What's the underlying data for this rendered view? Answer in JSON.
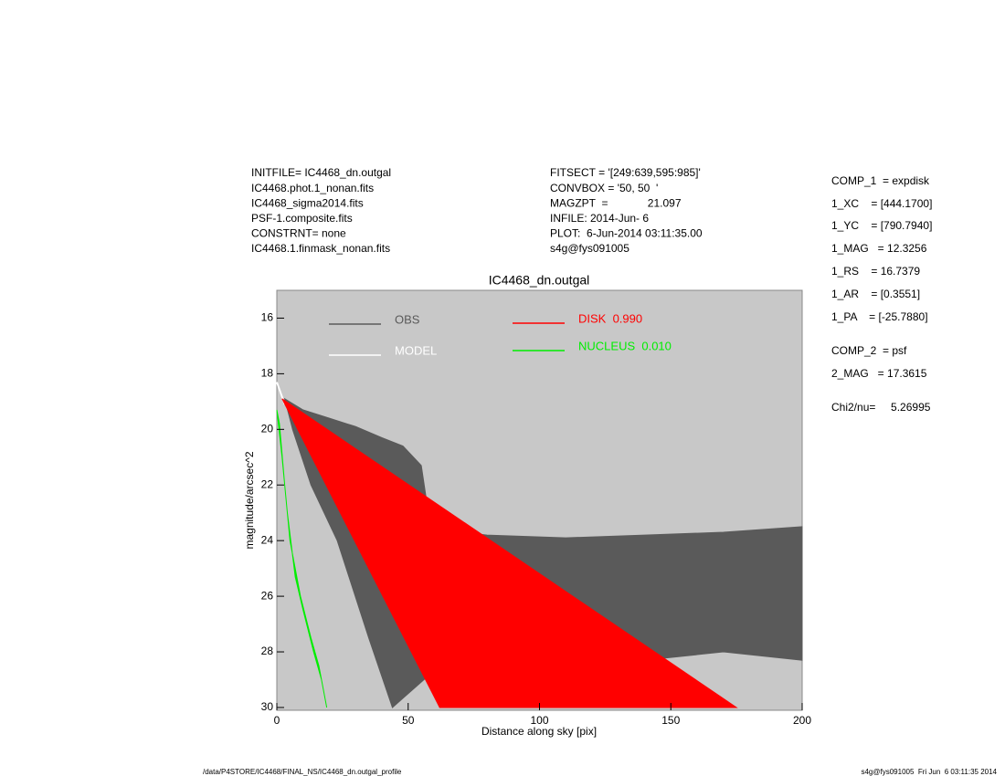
{
  "header": {
    "left": [
      "INITFILE= IC4468_dn.outgal",
      "IC4468.phot.1_nonan.fits",
      "IC4468_sigma2014.fits",
      "PSF-1.composite.fits",
      "CONSTRNT= none",
      "IC4468.1.finmask_nonan.fits"
    ],
    "middle": [
      "FITSECT = '[249:639,595:985]'",
      "CONVBOX = '50, 50  '",
      "MAGZPT  =             21.097",
      "INFILE: 2014-Jun- 6",
      "PLOT:  6-Jun-2014 03:11:35.00",
      "s4g@fys091005"
    ],
    "right": [
      "COMP_1  = expdisk",
      "1_XC    = [444.1700]",
      "1_YC    = [790.7940]",
      "1_MAG   = 12.3256",
      "1_RS    = 16.7379",
      "1_AR    = [0.3551]",
      "1_PA    = [-25.7880]",
      "COMP_2  = psf",
      "2_MAG   = 17.3615",
      "Chi2/nu=     5.26995"
    ]
  },
  "footer": {
    "left": "/data/P4STORE/IC4468/FINAL_NS/IC4468_dn.outgal_profile",
    "right": "s4g@fys091005  Fri Jun  6 03:11:35 2014"
  },
  "chart_data": {
    "type": "area",
    "title": "IC4468_dn.outgal",
    "x_label": "Distance along sky [pix]",
    "y_label": "magnitude/arcsec^2",
    "xlim": [
      0,
      200
    ],
    "xticks": [
      0,
      50,
      100,
      150,
      200
    ],
    "ylim": [
      15,
      30.1
    ],
    "y_inverted": true,
    "yticks": [
      16,
      18,
      20,
      22,
      24,
      26,
      28,
      30
    ],
    "series": [
      {
        "name": "OBS",
        "color": "#5a5a5a",
        "mark": "area",
        "x": [
          3,
          10,
          20,
          30,
          40,
          48,
          55,
          58,
          62,
          80,
          110,
          140,
          170,
          200,
          200,
          170,
          140,
          110,
          90,
          75,
          62,
          50,
          44,
          35,
          23,
          13,
          6
        ],
        "values": [
          18.9,
          19.3,
          19.6,
          19.9,
          20.3,
          20.6,
          21.3,
          23.2,
          23.6,
          23.8,
          23.9,
          23.8,
          23.7,
          23.5,
          28.3,
          28.0,
          28.3,
          27.9,
          27.6,
          27.5,
          28.5,
          29.5,
          30.0,
          27.5,
          24.0,
          22.0,
          20.0
        ]
      },
      {
        "name": "MODEL",
        "color": "#ffffff",
        "mark": "line",
        "x": [
          0,
          3
        ],
        "values": [
          18.3,
          19.1
        ]
      },
      {
        "name": "DISK  0.990",
        "color": "#ff0000",
        "mark": "area",
        "x": [
          2,
          62,
          175
        ],
        "values": [
          18.9,
          30,
          30
        ]
      },
      {
        "name": "NUCLEUS  0.010",
        "color": "#00ee00",
        "mark": "area",
        "x": [
          0,
          2,
          4,
          7,
          10,
          14,
          17,
          19,
          19,
          16,
          13,
          9,
          5,
          3,
          1
        ],
        "values": [
          19.3,
          21,
          23,
          25.3,
          26.5,
          28,
          29,
          30,
          30,
          28.5,
          27.5,
          26,
          24,
          22,
          19.8
        ]
      }
    ]
  }
}
